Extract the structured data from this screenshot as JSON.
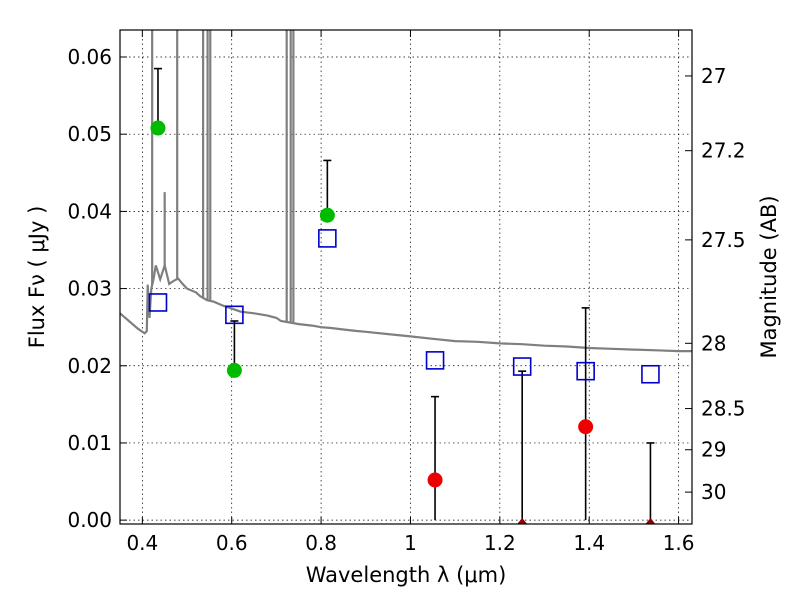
{
  "chart_data": {
    "type": "scatter",
    "title": "",
    "xlabel": "Wavelength  λ (μm)",
    "ylabel": "Flux  Fν  ( μJy )",
    "y2label": "Magnitude (AB)",
    "xlim": [
      0.35,
      1.63
    ],
    "ylim": [
      -0.0005,
      0.0635
    ],
    "grid": true,
    "legend": "none",
    "x_ticks": [
      {
        "value": 0.4,
        "label": "0.4"
      },
      {
        "value": 0.6,
        "label": "0.6"
      },
      {
        "value": 0.8,
        "label": "0.8"
      },
      {
        "value": 1.0,
        "label": "1"
      },
      {
        "value": 1.2,
        "label": "1.2"
      },
      {
        "value": 1.4,
        "label": "1.4"
      },
      {
        "value": 1.6,
        "label": "1.6"
      }
    ],
    "y_ticks": [
      {
        "value": 0.0,
        "label": "0.00"
      },
      {
        "value": 0.01,
        "label": "0.01"
      },
      {
        "value": 0.02,
        "label": "0.02"
      },
      {
        "value": 0.03,
        "label": "0.03"
      },
      {
        "value": 0.04,
        "label": "0.04"
      },
      {
        "value": 0.05,
        "label": "0.05"
      },
      {
        "value": 0.06,
        "label": "0.06"
      }
    ],
    "y2_ticks": [
      {
        "value": 27,
        "label": "27"
      },
      {
        "value": 27.2,
        "label": "27.2"
      },
      {
        "value": 27.5,
        "label": "27.5"
      },
      {
        "value": 28,
        "label": "28"
      },
      {
        "value": 28.5,
        "label": "28.5"
      },
      {
        "value": 29,
        "label": "29"
      },
      {
        "value": 30,
        "label": "30"
      }
    ],
    "colors": {
      "detection": "#00bb00",
      "non_detection": "#ee0000",
      "model_photometry": "#0000cc",
      "template": "#7f7f7f",
      "error_bar": "#000000"
    },
    "series": [
      {
        "type": "scatter-errorbar",
        "points": [
          {
            "x": 0.435,
            "y": 0.0508,
            "yerr_low": 0.0508,
            "yerr_high": 0.0585,
            "detected": true
          },
          {
            "x": 0.606,
            "y": 0.0194,
            "yerr_low": 0.0194,
            "yerr_high": 0.0258,
            "detected": true
          },
          {
            "x": 0.814,
            "y": 0.0395,
            "yerr_low": 0.0395,
            "yerr_high": 0.0466,
            "detected": true
          },
          {
            "x": 1.055,
            "y": 0.0052,
            "yerr_low": 0.0,
            "yerr_high": 0.016,
            "detected": false
          },
          {
            "x": 1.25,
            "y": 0.0,
            "yerr_low": 0.0,
            "yerr_high": 0.0193,
            "detected": false
          },
          {
            "x": 1.392,
            "y": 0.0121,
            "yerr_low": 0.0,
            "yerr_high": 0.0275,
            "detected": false
          },
          {
            "x": 1.537,
            "y": 0.0,
            "yerr_low": 0.0,
            "yerr_high": 0.01,
            "detected": false
          }
        ]
      },
      {
        "type": "scatter",
        "marker": "open-square",
        "points": [
          {
            "x": 0.435,
            "y": 0.0282
          },
          {
            "x": 0.606,
            "y": 0.0266
          },
          {
            "x": 0.814,
            "y": 0.0365
          },
          {
            "x": 1.055,
            "y": 0.0207
          },
          {
            "x": 1.25,
            "y": 0.0199
          },
          {
            "x": 1.392,
            "y": 0.0193
          },
          {
            "x": 1.537,
            "y": 0.0189
          }
        ]
      },
      {
        "type": "line",
        "x": [
          0.35,
          0.37,
          0.39,
          0.405,
          0.41,
          0.412,
          0.416,
          0.42,
          0.425,
          0.43,
          0.44,
          0.45,
          0.46,
          0.47,
          0.48,
          0.49,
          0.5,
          0.52,
          0.53,
          0.545,
          0.56,
          0.58,
          0.6,
          0.62,
          0.65,
          0.68,
          0.7,
          0.71,
          0.73,
          0.75,
          0.78,
          0.8,
          0.82,
          0.85,
          0.88,
          0.9,
          0.95,
          1.0,
          1.05,
          1.1,
          1.15,
          1.2,
          1.25,
          1.3,
          1.35,
          1.4,
          1.45,
          1.5,
          1.55,
          1.6,
          1.63
        ],
        "y": [
          0.0268,
          0.0258,
          0.0248,
          0.0242,
          0.0245,
          0.0305,
          0.0262,
          0.03,
          0.0312,
          0.033,
          0.0312,
          0.033,
          0.0306,
          0.031,
          0.0313,
          0.0306,
          0.03,
          0.0295,
          0.029,
          0.0285,
          0.0283,
          0.0278,
          0.0274,
          0.027,
          0.0268,
          0.0265,
          0.0262,
          0.0258,
          0.0256,
          0.0254,
          0.0252,
          0.025,
          0.0249,
          0.0247,
          0.0245,
          0.0244,
          0.0241,
          0.0238,
          0.0235,
          0.0232,
          0.0231,
          0.0229,
          0.0228,
          0.0226,
          0.0225,
          0.0223,
          0.0222,
          0.0221,
          0.022,
          0.0219,
          0.0219
        ]
      }
    ],
    "template_features": [
      {
        "x": 0.422,
        "y_top": 0.0635
      },
      {
        "x": 0.45,
        "y_top": 0.0425
      },
      {
        "x": 0.478,
        "y_top": 0.0635
      },
      {
        "x": 0.536,
        "y_top": 0.0635
      },
      {
        "x": 0.546,
        "y_top": 0.0635
      },
      {
        "x": 0.552,
        "y_top": 0.0635
      },
      {
        "x": 0.723,
        "y_top": 0.0635
      },
      {
        "x": 0.732,
        "y_top": 0.0635
      },
      {
        "x": 0.738,
        "y_top": 0.0635
      }
    ]
  }
}
